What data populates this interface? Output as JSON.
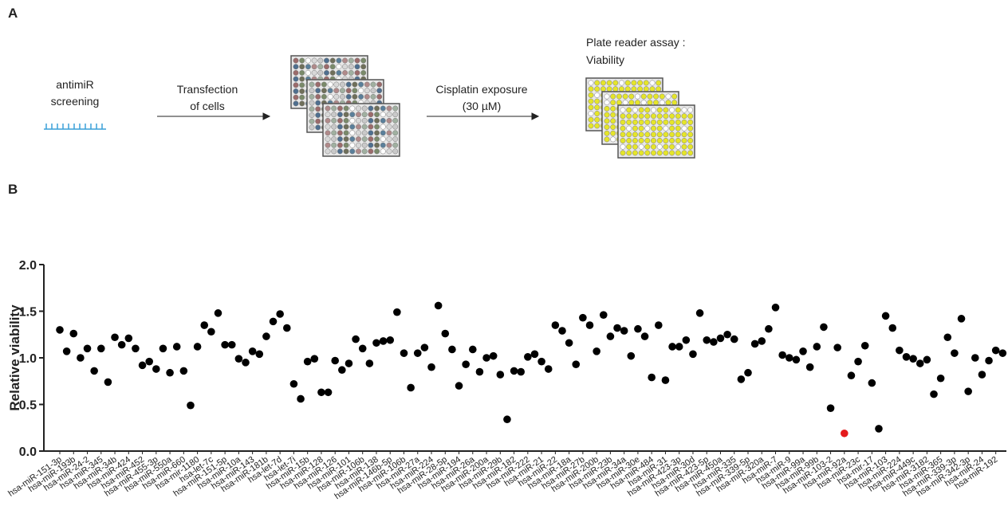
{
  "panel_a": {
    "label": "A",
    "step1": [
      "antimiR",
      "screening"
    ],
    "step2": [
      "Transfection",
      "of cells"
    ],
    "step3": [
      "Cisplatin exposure",
      "(30 µM)"
    ],
    "step4": [
      "Plate reader assay :",
      "Viability"
    ]
  },
  "chart_data": {
    "type": "scatter",
    "panel_label": "B",
    "y_label": "Relative viability",
    "categories": [
      "hsa-miR-151-3p",
      null,
      "hsa-miR-193b",
      null,
      "hsa-miR-24-2",
      null,
      "hsa-miR-345",
      null,
      "hsa-miR-34b",
      null,
      "hsa-miR-424",
      null,
      "hsa-miR-452",
      null,
      "hsa-miR-455-3p",
      null,
      "hsa-miR-550a",
      null,
      "hsa-miR-660",
      null,
      "hsa-mir-1180",
      null,
      "hsa-let-7c",
      null,
      "hsa-miR-151-5p",
      null,
      "hsa-miR-10a",
      null,
      "hsa-miR-143",
      null,
      "hsa-miR-181b",
      null,
      "hsa-let-7d",
      null,
      "hsa-let-7i",
      null,
      "hsa-miR-15b",
      null,
      "hsa-miR-128",
      null,
      "hsa-miR-126",
      null,
      "hsa-miR-101",
      null,
      "hsa-miR-106b",
      null,
      "hsa-miR-138",
      null,
      "hsa-miR-146b-5p",
      null,
      "hsa-miR-106b",
      null,
      "hsa-miR-27a",
      null,
      "hsa-miR-224",
      null,
      "hsa-miR-28-5p",
      null,
      "hsa-miR-194",
      null,
      "hsa-miR-26a",
      null,
      "hsa-miR-200a",
      null,
      "hsa-miR-29b",
      null,
      "hsa-miR-182",
      null,
      "hsa-miR-222",
      null,
      "hsa-miR-21",
      null,
      "hsa-miR-22",
      null,
      "hsa-miR-18a",
      null,
      "hsa-miR-27b",
      null,
      "hsa-miR-200b",
      null,
      "hsa-miR-23b",
      null,
      "hsa-miR-34a",
      null,
      "hsa-miR-30e",
      null,
      "hsa-miR-484",
      null,
      "hsa-miR-31",
      null,
      "hsa-miR-423-3p",
      null,
      "hsa-miR-30d",
      null,
      "hsa-miR-423-5p",
      null,
      "hsa-miR-450a",
      null,
      "hsa-miR-335",
      null,
      "hsa-miR-339-5p",
      null,
      "hsa-miR-320a",
      null,
      "hsa-miR-7",
      null,
      "hsa-miR-9",
      null,
      "hsa-miR-99a",
      null,
      "hsa-miR-99b",
      null,
      "hsa-miR-103-2",
      null,
      "hsa-miR-92a",
      null,
      "hsa-miR-23c",
      null,
      "hsa-mir-17",
      null,
      "hsa-miR-103",
      null,
      "hsa-miR-224",
      null,
      "hsa-miR-449c",
      null,
      "hsa-miR-3182",
      null,
      "hsa-miR-365",
      null,
      "hsa-miR-339-3p",
      null,
      "hsa-miR-342-3p",
      null,
      "hsa-miR-24",
      null,
      "hsa-miR-192",
      null
    ],
    "values": [
      1.3,
      1.07,
      1.26,
      1.0,
      1.1,
      0.86,
      1.1,
      0.74,
      1.22,
      1.14,
      1.21,
      1.1,
      0.92,
      0.96,
      0.88,
      1.1,
      0.84,
      1.12,
      0.86,
      0.49,
      1.12,
      1.35,
      1.28,
      1.48,
      1.14,
      1.14,
      0.99,
      0.95,
      1.07,
      1.04,
      1.23,
      1.39,
      1.47,
      1.32,
      0.72,
      0.56,
      0.96,
      0.99,
      0.63,
      0.63,
      0.97,
      0.87,
      0.94,
      1.2,
      1.1,
      0.94,
      1.16,
      1.18,
      1.19,
      1.49,
      1.05,
      0.68,
      1.05,
      1.11,
      0.9,
      1.56,
      1.26,
      1.09,
      0.7,
      0.93,
      1.09,
      0.85,
      1.0,
      1.02,
      0.82,
      0.34,
      0.86,
      0.85,
      1.01,
      1.04,
      0.96,
      0.88,
      1.35,
      1.29,
      1.16,
      0.93,
      1.43,
      1.35,
      1.07,
      1.46,
      1.23,
      1.32,
      1.29,
      1.02,
      1.31,
      1.23,
      0.79,
      1.35,
      0.76,
      1.12,
      1.12,
      1.19,
      1.04,
      1.48,
      1.19,
      1.17,
      1.21,
      1.25,
      1.2,
      0.77,
      0.84,
      1.15,
      1.18,
      1.31,
      1.54,
      1.03,
      1.0,
      0.98,
      1.07,
      0.9,
      1.12,
      1.33,
      0.46,
      1.11,
      0.19,
      0.81,
      0.96,
      1.13,
      0.73,
      0.24,
      1.45,
      1.32,
      1.08,
      1.01,
      0.99,
      0.94,
      0.98,
      0.61,
      0.78,
      1.22,
      1.05,
      1.42,
      0.64,
      1.0,
      0.82,
      0.97,
      1.08,
      1.05
    ],
    "color": "#000000",
    "highlight": [
      114
    ],
    "highlight_color": "#e41a1c",
    "ylim": [
      0,
      2
    ],
    "yticks": [
      {
        "value": 0,
        "label": "0.0"
      },
      {
        "value": 0.5,
        "label": "0.5"
      },
      {
        "value": 1,
        "label": "1.0"
      },
      {
        "value": 1.5,
        "label": "1.5"
      },
      {
        "value": 2,
        "label": "2.0"
      }
    ]
  }
}
